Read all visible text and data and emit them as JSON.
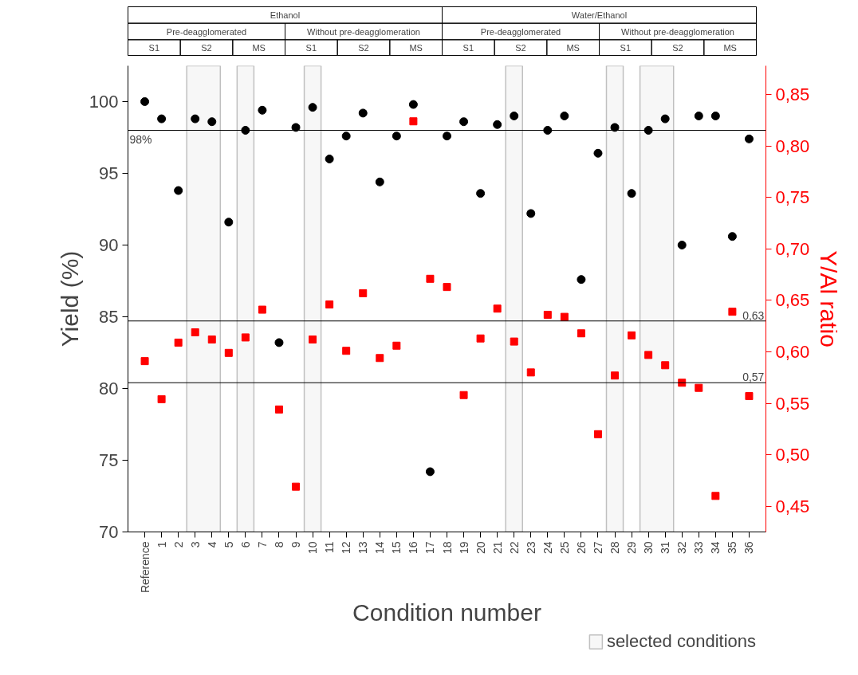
{
  "chart_data": {
    "type": "scatter",
    "categories": [
      "Reference",
      "1",
      "2",
      "3",
      "4",
      "5",
      "6",
      "7",
      "8",
      "9",
      "10",
      "11",
      "12",
      "13",
      "14",
      "15",
      "16",
      "17",
      "18",
      "19",
      "20",
      "21",
      "22",
      "23",
      "24",
      "25",
      "26",
      "27",
      "28",
      "29",
      "30",
      "31",
      "32",
      "33",
      "34",
      "35",
      "36"
    ],
    "xlabel": "Condition number",
    "ylabel": "Yield (%)",
    "y2label": "Y/Al ratio",
    "series": [
      {
        "color": "#000000",
        "marker": "circle",
        "values": [
          100.0,
          98.8,
          93.8,
          98.8,
          98.6,
          91.6,
          98.0,
          99.4,
          83.2,
          98.2,
          99.6,
          96.0,
          97.6,
          99.2,
          94.4,
          97.6,
          99.8,
          74.2,
          97.6,
          98.6,
          93.6,
          98.4,
          99.0,
          92.2,
          98.0,
          99.0,
          87.6,
          96.4,
          98.2,
          93.6,
          98.0,
          98.8,
          90.0,
          99.0,
          99.0,
          90.6,
          97.4
        ]
      },
      {
        "color": "#ff0000",
        "marker": "square",
        "axis": "y2",
        "values": [
          0.591,
          0.554,
          0.609,
          0.619,
          0.612,
          0.599,
          0.614,
          0.641,
          0.544,
          0.469,
          0.612,
          0.646,
          0.601,
          0.657,
          0.594,
          0.606,
          0.824,
          0.671,
          0.663,
          0.558,
          0.613,
          0.642,
          0.61,
          0.58,
          0.636,
          0.634,
          0.618,
          0.52,
          0.577,
          0.616,
          0.597,
          0.587,
          0.57,
          0.565,
          0.46,
          0.639,
          0.557
        ]
      }
    ],
    "ylim": [
      70,
      102.5
    ],
    "yticks": [
      70,
      75,
      80,
      85,
      90,
      95,
      100
    ],
    "y2lim": [
      0.425,
      0.878
    ],
    "y2ticks": [
      {
        "value": 0.45,
        "label": "0,45"
      },
      {
        "value": 0.5,
        "label": "0,50"
      },
      {
        "value": 0.55,
        "label": "0,55"
      },
      {
        "value": 0.6,
        "label": "0,60"
      },
      {
        "value": 0.65,
        "label": "0,65"
      },
      {
        "value": 0.7,
        "label": "0,70"
      },
      {
        "value": 0.75,
        "label": "0,75"
      },
      {
        "value": 0.8,
        "label": "0,80"
      },
      {
        "value": 0.85,
        "label": "0,85"
      }
    ],
    "ref_lines": [
      {
        "axis": "y",
        "value": 98,
        "label": "98%"
      },
      {
        "axis": "y2",
        "value": 0.63,
        "label": "0,63"
      },
      {
        "axis": "y2",
        "value": 0.57,
        "label": "0,57"
      }
    ],
    "bands": [
      {
        "axis": "x",
        "from": "3",
        "to": "4",
        "color": "#c0c0c0",
        "label": "selected conditions"
      },
      {
        "axis": "x",
        "from": "6",
        "to": "6",
        "color": "#c0c0c0"
      },
      {
        "axis": "x",
        "from": "10",
        "to": "10",
        "color": "#c0c0c0"
      },
      {
        "axis": "x",
        "from": "22",
        "to": "22",
        "color": "#c0c0c0"
      },
      {
        "axis": "x",
        "from": "28",
        "to": "28",
        "color": "#c0c0c0"
      },
      {
        "axis": "x",
        "from": "30",
        "to": "31",
        "color": "#c0c0c0"
      }
    ],
    "annotations": [
      "Ethanol",
      "Water/Ethanol",
      "Pre-deagglomerated",
      "Without pre-deagglomeration",
      "Pre-deagglomerated",
      "Without pre-deagglomeration",
      "S1",
      "S2",
      "MS",
      "S1",
      "S2",
      "MS",
      "S1",
      "S2",
      "MS",
      "S1",
      "S2",
      "MS"
    ],
    "grid": false,
    "legend": "bottom right"
  }
}
